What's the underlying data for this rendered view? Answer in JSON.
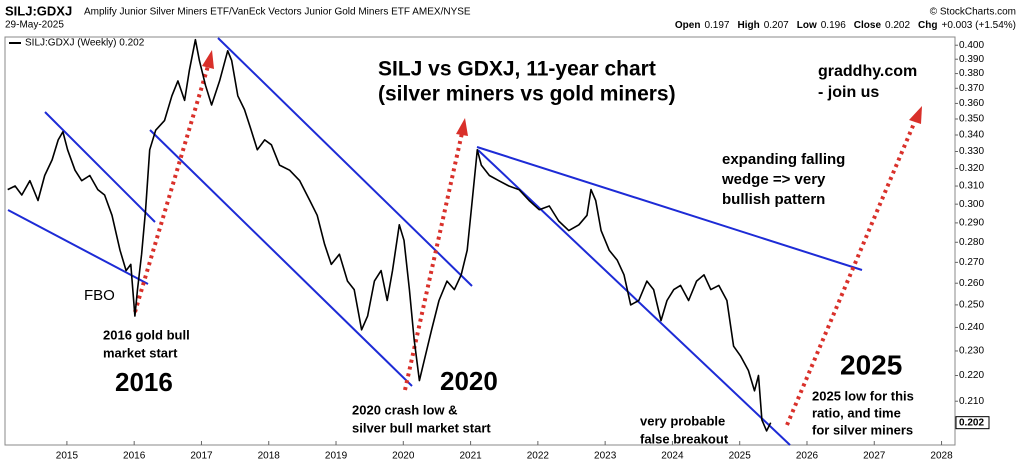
{
  "header": {
    "symbol": "SILJ:GDXJ",
    "name": "Amplify Junior Silver Miners ETF/VanEck Vectors Junior Gold Miners ETF AMEX/NYSE",
    "date": "29-May-2025",
    "source": "© StockCharts.com",
    "quote": [
      {
        "label": "Open",
        "value": 0.197
      },
      {
        "label": "High",
        "value": 0.207
      },
      {
        "label": "Low",
        "value": 0.196
      },
      {
        "label": "Close",
        "value": 0.202
      },
      {
        "label": "Chg",
        "value": "+0.003 (+1.54%)"
      }
    ]
  },
  "chart_data": {
    "type": "line",
    "log_y": true,
    "legend": "upper left",
    "grid": false,
    "xlim": [
      2014.08,
      2028.2
    ],
    "xticks": [
      2015,
      2016,
      2017,
      2018,
      2019,
      2020,
      2021,
      2022,
      2023,
      2024,
      2025,
      2026,
      2027,
      2028
    ],
    "ylim": [
      0.194,
      0.406
    ],
    "yticks": [
      {
        "value": 0.21,
        "label": "0.210"
      },
      {
        "value": 0.22,
        "label": "0.220"
      },
      {
        "value": 0.23,
        "label": "0.230"
      },
      {
        "value": 0.24,
        "label": "0.240"
      },
      {
        "value": 0.25,
        "label": "0.250"
      },
      {
        "value": 0.26,
        "label": "0.260"
      },
      {
        "value": 0.27,
        "label": "0.270"
      },
      {
        "value": 0.28,
        "label": "0.280"
      },
      {
        "value": 0.29,
        "label": "0.290"
      },
      {
        "value": 0.3,
        "label": "0.300"
      },
      {
        "value": 0.31,
        "label": "0.310"
      },
      {
        "value": 0.32,
        "label": "0.320"
      },
      {
        "value": 0.33,
        "label": "0.330"
      },
      {
        "value": 0.34,
        "label": "0.340"
      },
      {
        "value": 0.35,
        "label": "0.350"
      },
      {
        "value": 0.36,
        "label": "0.360"
      },
      {
        "value": 0.37,
        "label": "0.370"
      },
      {
        "value": 0.38,
        "label": "0.380"
      },
      {
        "value": 0.39,
        "label": "0.390"
      },
      {
        "value": 0.4,
        "label": "0.400"
      }
    ],
    "x": [
      2014.12,
      2014.23,
      2014.33,
      2014.45,
      2014.57,
      2014.67,
      2014.78,
      2014.87,
      2014.94,
      2015.01,
      2015.12,
      2015.22,
      2015.34,
      2015.46,
      2015.56,
      2015.67,
      2015.79,
      2015.88,
      2015.95,
      2016.01,
      2016.05,
      2016.11,
      2016.17,
      2016.23,
      2016.32,
      2016.45,
      2016.56,
      2016.65,
      2016.75,
      2016.82,
      2016.91,
      2016.97,
      2017.06,
      2017.15,
      2017.27,
      2017.39,
      2017.45,
      2017.54,
      2017.64,
      2017.74,
      2017.83,
      2017.94,
      2018.04,
      2018.16,
      2018.31,
      2018.46,
      2018.61,
      2018.72,
      2018.83,
      2018.93,
      2019.05,
      2019.17,
      2019.27,
      2019.38,
      2019.47,
      2019.57,
      2019.67,
      2019.76,
      2019.84,
      2019.94,
      2020.01,
      2020.09,
      2020.16,
      2020.24,
      2020.31,
      2020.42,
      2020.53,
      2020.65,
      2020.76,
      2020.86,
      2020.95,
      2021.01,
      2021.1,
      2021.16,
      2021.28,
      2021.42,
      2021.57,
      2021.72,
      2021.87,
      2022.02,
      2022.17,
      2022.31,
      2022.46,
      2022.61,
      2022.73,
      2022.79,
      2022.86,
      2022.94,
      2023.06,
      2023.18,
      2023.28,
      2023.38,
      2023.5,
      2023.62,
      2023.72,
      2023.83,
      2023.92,
      2024.02,
      2024.12,
      2024.24,
      2024.36,
      2024.47,
      2024.57,
      2024.69,
      2024.81,
      2024.91,
      2025.01,
      2025.13,
      2025.22,
      2025.28,
      2025.33,
      2025.4,
      2025.46
    ],
    "series": [
      {
        "name": "SILJ:GDXJ (Weekly) 0.202",
        "color": "#000000",
        "values": [
          0.308,
          0.31,
          0.305,
          0.313,
          0.302,
          0.316,
          0.325,
          0.337,
          0.342,
          0.331,
          0.319,
          0.313,
          0.316,
          0.308,
          0.305,
          0.294,
          0.276,
          0.266,
          0.269,
          0.245,
          0.257,
          0.274,
          0.297,
          0.331,
          0.343,
          0.349,
          0.365,
          0.375,
          0.362,
          0.382,
          0.404,
          0.389,
          0.372,
          0.359,
          0.375,
          0.396,
          0.389,
          0.365,
          0.356,
          0.343,
          0.331,
          0.337,
          0.334,
          0.322,
          0.319,
          0.313,
          0.302,
          0.294,
          0.279,
          0.269,
          0.274,
          0.261,
          0.257,
          0.239,
          0.245,
          0.261,
          0.266,
          0.252,
          0.266,
          0.289,
          0.281,
          0.257,
          0.235,
          0.218,
          0.226,
          0.239,
          0.252,
          0.261,
          0.257,
          0.264,
          0.276,
          0.297,
          0.331,
          0.322,
          0.316,
          0.313,
          0.31,
          0.308,
          0.302,
          0.297,
          0.299,
          0.291,
          0.286,
          0.289,
          0.294,
          0.308,
          0.302,
          0.286,
          0.276,
          0.271,
          0.264,
          0.25,
          0.252,
          0.261,
          0.257,
          0.243,
          0.252,
          0.257,
          0.259,
          0.252,
          0.261,
          0.264,
          0.257,
          0.259,
          0.252,
          0.232,
          0.228,
          0.222,
          0.214,
          0.22,
          0.203,
          0.199,
          0.202
        ]
      }
    ],
    "last_label": "0.202",
    "annotations": {
      "title": "SILJ vs GDXJ, 11-year chart",
      "subtitle": "(silver miners vs gold miners)",
      "site": "graddhy.com",
      "site_note": "- join us",
      "wedge": [
        "expanding falling",
        "wedge => very",
        "bullish pattern"
      ],
      "fbo": "FBO",
      "start_2016": [
        "2016 gold bull",
        "market start"
      ],
      "year_2016": "2016",
      "year_2020": "2020",
      "low_2020": [
        "2020 crash low &",
        "silver bull market start"
      ],
      "year_2025": "2025",
      "low_2025": [
        "2025 low for this",
        "ratio, and time",
        "for silver miners"
      ],
      "breakout": [
        "very probable",
        "false breakout"
      ]
    }
  }
}
